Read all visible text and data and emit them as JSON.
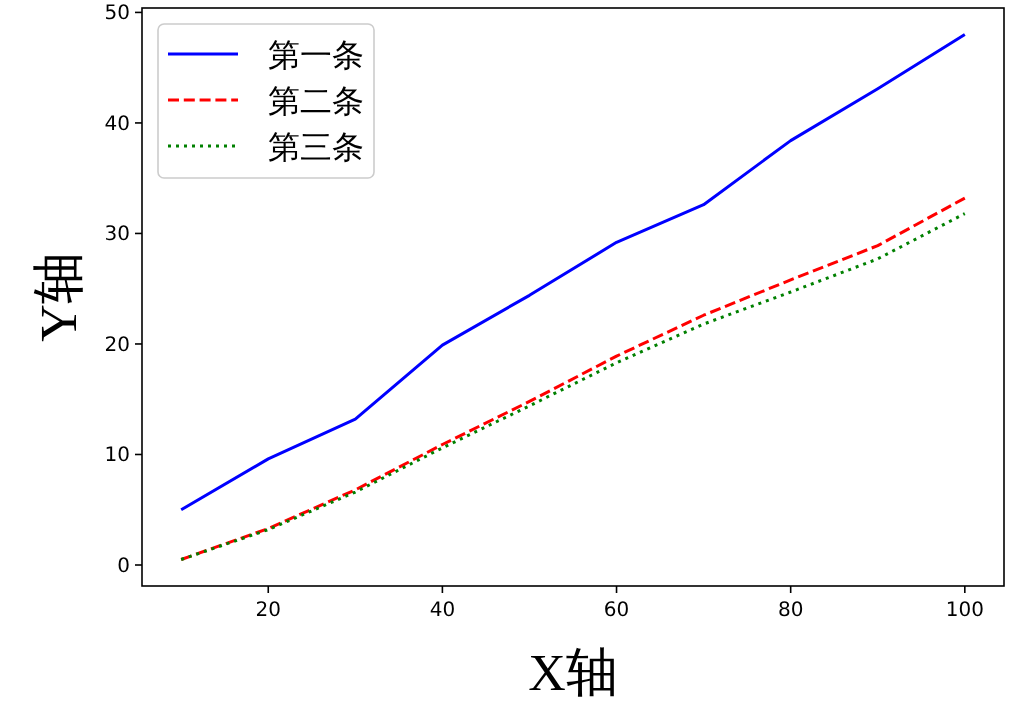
{
  "chart_data": {
    "type": "line",
    "xlabel": "X轴",
    "ylabel": "Y轴",
    "x": [
      10,
      20,
      30,
      40,
      50,
      60,
      70,
      80,
      90,
      100
    ],
    "xlim": [
      5.5,
      104.5
    ],
    "xticks": [
      20,
      40,
      60,
      80,
      100
    ],
    "ylim": [
      -1.9,
      50.4
    ],
    "yticks": [
      0,
      10,
      20,
      30,
      40,
      50
    ],
    "grid": false,
    "legend": "top left",
    "series": [
      {
        "name": "第一条",
        "color": "#0000ff",
        "line_style": "solid",
        "values": [
          5,
          9.6,
          13.2,
          19.9,
          24.4,
          29.2,
          32.6,
          38.4,
          43.1,
          48
        ]
      },
      {
        "name": "第二条",
        "color": "#ff0000",
        "line_style": "dashed",
        "values": [
          0.5,
          3.3,
          6.8,
          10.9,
          14.8,
          18.9,
          22.6,
          25.8,
          28.9,
          33.2
        ]
      },
      {
        "name": "第三条",
        "color": "#008000",
        "line_style": "dotted",
        "values": [
          0.5,
          3.2,
          6.6,
          10.6,
          14.4,
          18.3,
          21.8,
          24.7,
          27.7,
          31.8
        ]
      }
    ]
  }
}
